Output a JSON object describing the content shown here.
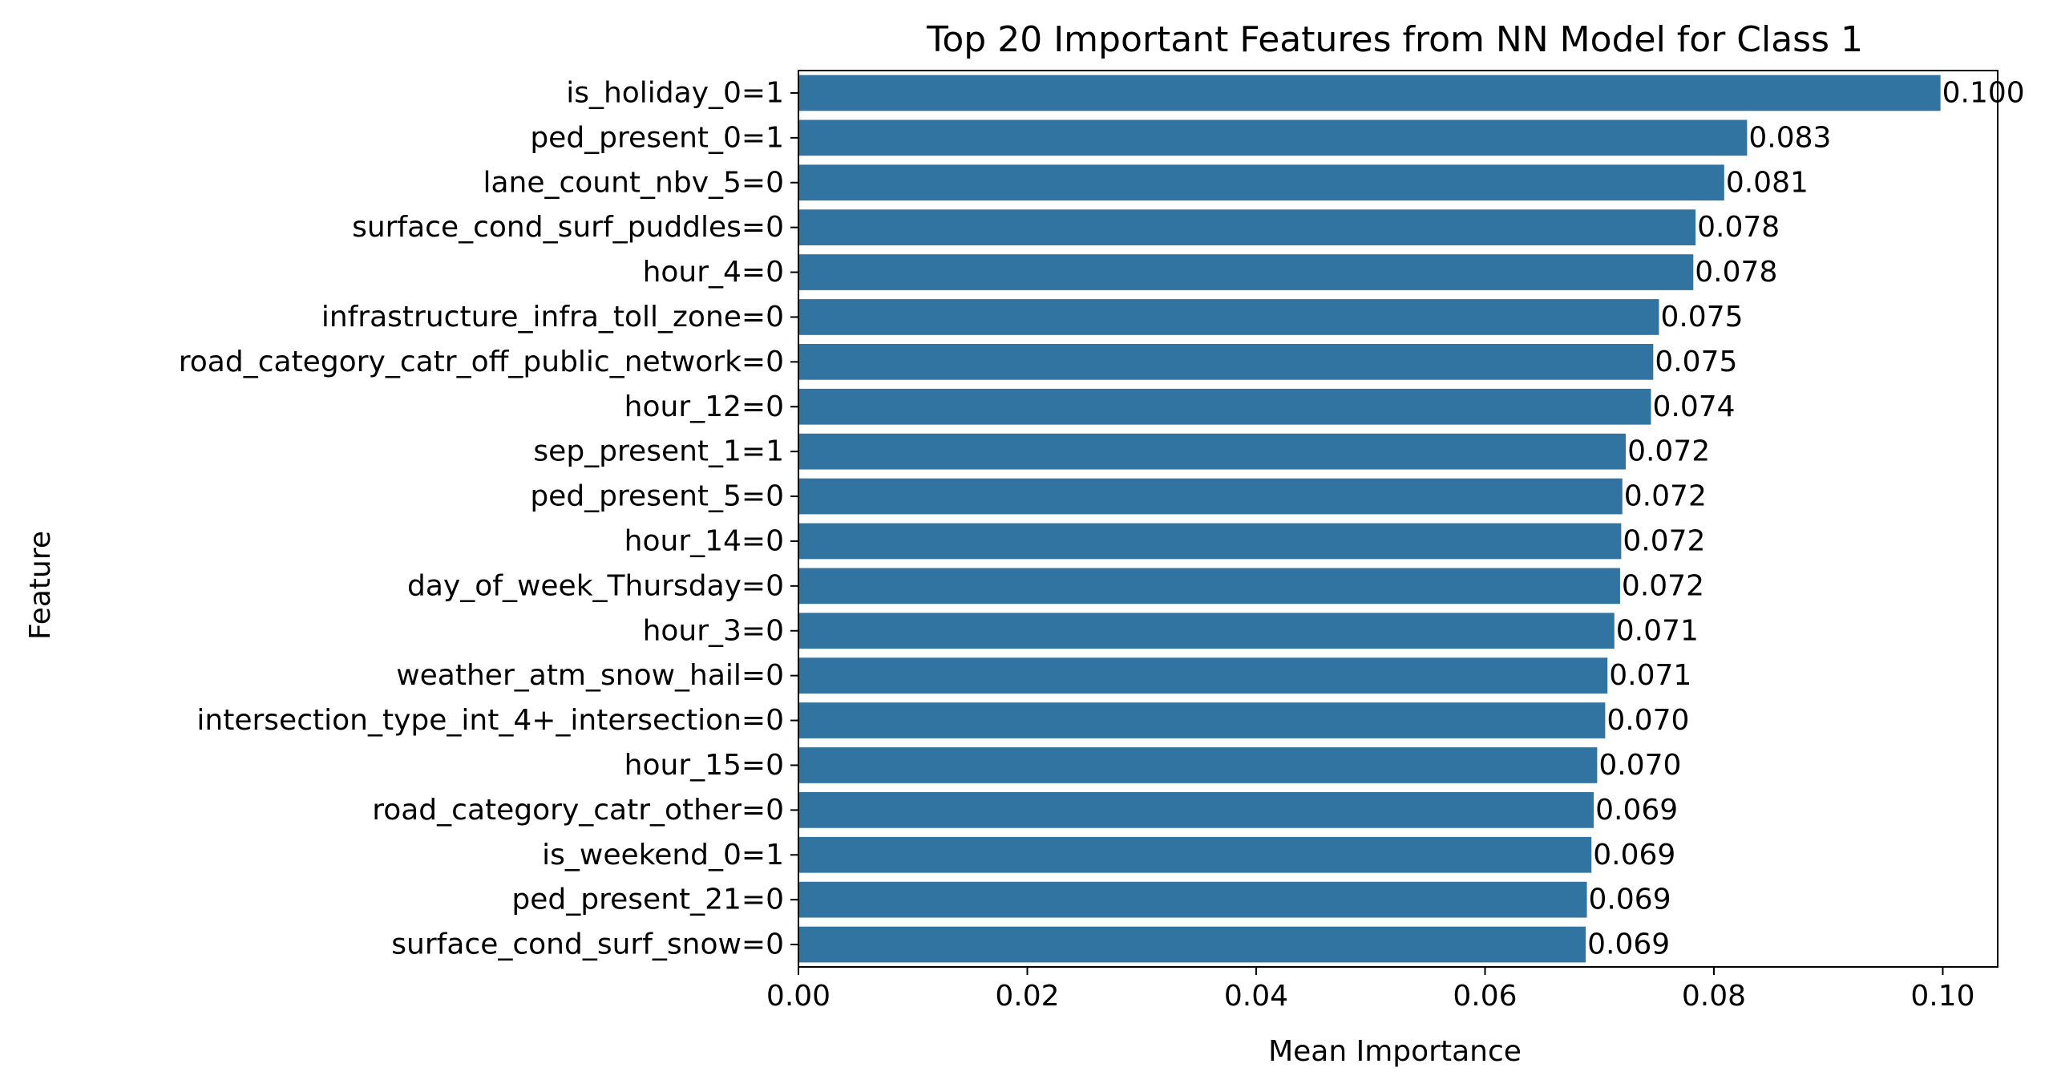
{
  "chart_data": {
    "type": "bar",
    "orientation": "horizontal",
    "title": "Top 20 Important Features from NN Model for Class 1",
    "xlabel": "Mean Importance",
    "ylabel": "Feature",
    "xlim": [
      0,
      0.1048
    ],
    "xticks": [
      0.0,
      0.02,
      0.04,
      0.06,
      0.08,
      0.1
    ],
    "xtick_labels": [
      "0.00",
      "0.02",
      "0.04",
      "0.06",
      "0.08",
      "0.10"
    ],
    "grid": false,
    "bar_color": "#3274a1",
    "categories": [
      "is_holiday_0=1",
      "ped_present_0=1",
      "lane_count_nbv_5=0",
      "surface_cond_surf_puddles=0",
      "hour_4=0",
      "infrastructure_infra_toll_zone=0",
      "road_category_catr_off_public_network=0",
      "hour_12=0",
      "sep_present_1=1",
      "ped_present_5=0",
      "hour_14=0",
      "day_of_week_Thursday=0",
      "hour_3=0",
      "weather_atm_snow_hail=0",
      "intersection_type_int_4+_intersection=0",
      "hour_15=0",
      "road_category_catr_other=0",
      "is_weekend_0=1",
      "ped_present_21=0",
      "surface_cond_surf_snow=0"
    ],
    "values": [
      0.0998,
      0.0829,
      0.0809,
      0.0784,
      0.0782,
      0.0752,
      0.0747,
      0.0745,
      0.0723,
      0.072,
      0.0719,
      0.0718,
      0.0713,
      0.0707,
      0.0705,
      0.0698,
      0.0695,
      0.0693,
      0.0689,
      0.0688
    ],
    "value_labels": [
      "0.100",
      "0.083",
      "0.081",
      "0.078",
      "0.078",
      "0.075",
      "0.075",
      "0.074",
      "0.072",
      "0.072",
      "0.072",
      "0.072",
      "0.071",
      "0.071",
      "0.070",
      "0.070",
      "0.069",
      "0.069",
      "0.069",
      "0.069"
    ]
  }
}
